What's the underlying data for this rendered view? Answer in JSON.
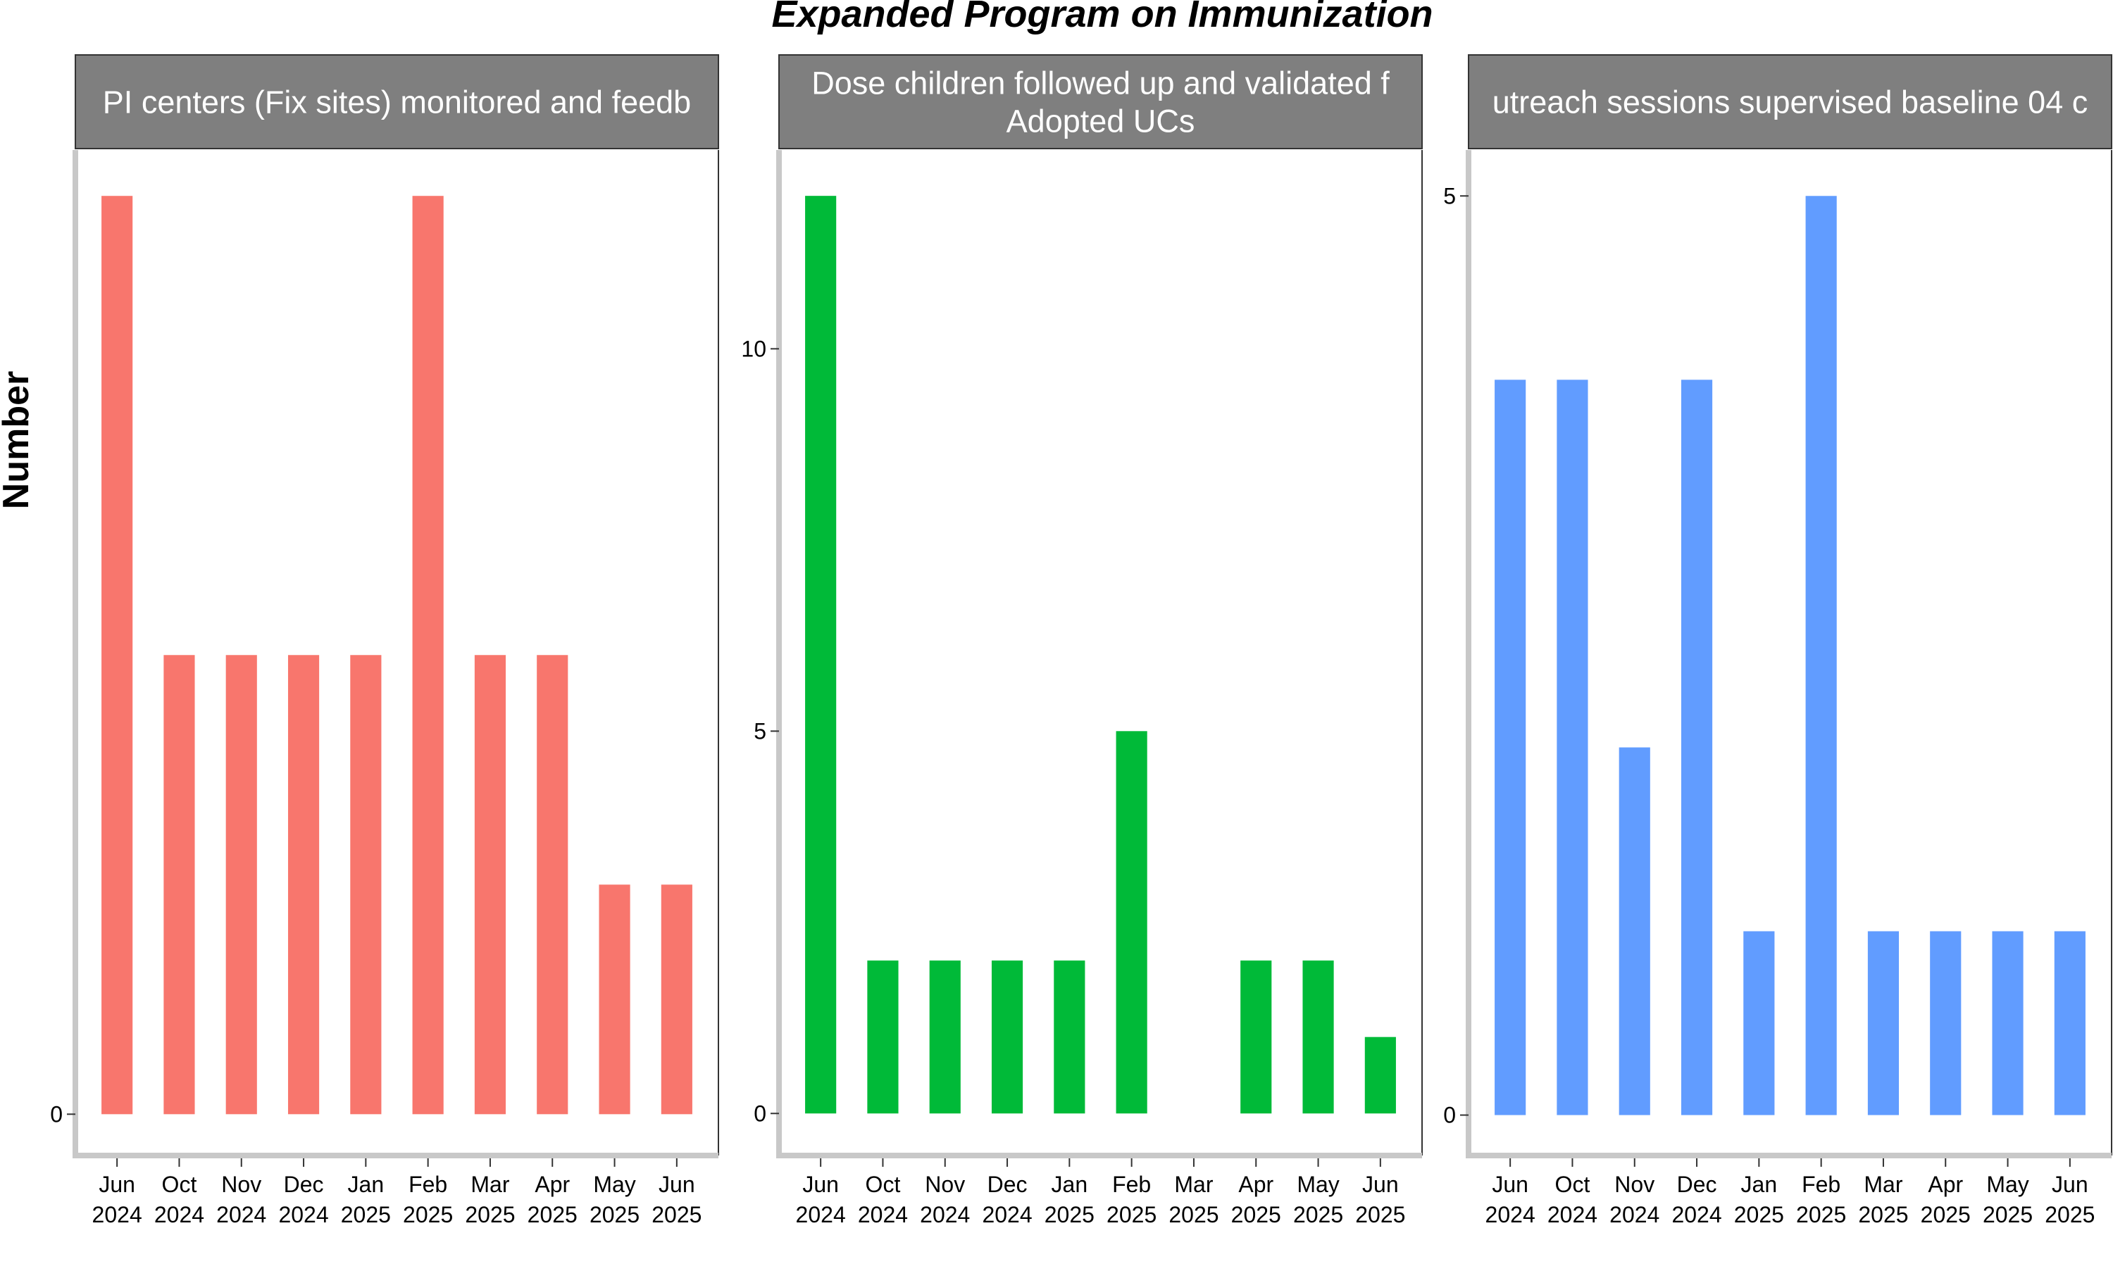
{
  "title": "Expanded Program on Immunization",
  "ylabel": "Number",
  "categories": [
    [
      "Jun",
      "2024"
    ],
    [
      "Oct",
      "2024"
    ],
    [
      "Nov",
      "2024"
    ],
    [
      "Dec",
      "2024"
    ],
    [
      "Jan",
      "2025"
    ],
    [
      "Feb",
      "2025"
    ],
    [
      "Mar",
      "2025"
    ],
    [
      "Apr",
      "2025"
    ],
    [
      "May",
      "2025"
    ],
    [
      "Jun",
      "2025"
    ]
  ],
  "chart_data": [
    {
      "type": "bar",
      "panel_title": [
        "PI centers (Fix sites) monitored and feedb"
      ],
      "color": "#F8766D",
      "categories": [
        "Jun 2024",
        "Oct 2024",
        "Nov 2024",
        "Dec 2024",
        "Jan 2025",
        "Feb 2025",
        "Mar 2025",
        "Apr 2025",
        "May 2025",
        "Jun 2025"
      ],
      "values": [
        4,
        2,
        2,
        2,
        2,
        4,
        2,
        2,
        1,
        1
      ],
      "ylim": [
        -0.18,
        4.2
      ],
      "yticks": [
        0
      ]
    },
    {
      "type": "bar",
      "panel_title": [
        "Dose children followed up and validated f",
        "Adopted UCs"
      ],
      "color": "#00BA38",
      "categories": [
        "Jun 2024",
        "Oct 2024",
        "Nov 2024",
        "Dec 2024",
        "Jan 2025",
        "Feb 2025",
        "Mar 2025",
        "Apr 2025",
        "May 2025",
        "Jun 2025"
      ],
      "values": [
        12,
        2,
        2,
        2,
        2,
        5,
        0,
        2,
        2,
        1
      ],
      "ylim": [
        -0.55,
        12.6
      ],
      "yticks": [
        0,
        5,
        10
      ]
    },
    {
      "type": "bar",
      "panel_title": [
        "utreach sessions supervised baseline 04 c"
      ],
      "color": "#619CFF",
      "categories": [
        "Jun 2024",
        "Oct 2024",
        "Nov 2024",
        "Dec 2024",
        "Jan 2025",
        "Feb 2025",
        "Mar 2025",
        "Apr 2025",
        "May 2025",
        "Jun 2025"
      ],
      "values": [
        4,
        4,
        2,
        4,
        1,
        5,
        1,
        1,
        1,
        1
      ],
      "ylim": [
        -0.22,
        5.25
      ],
      "yticks": [
        0,
        5
      ]
    }
  ]
}
